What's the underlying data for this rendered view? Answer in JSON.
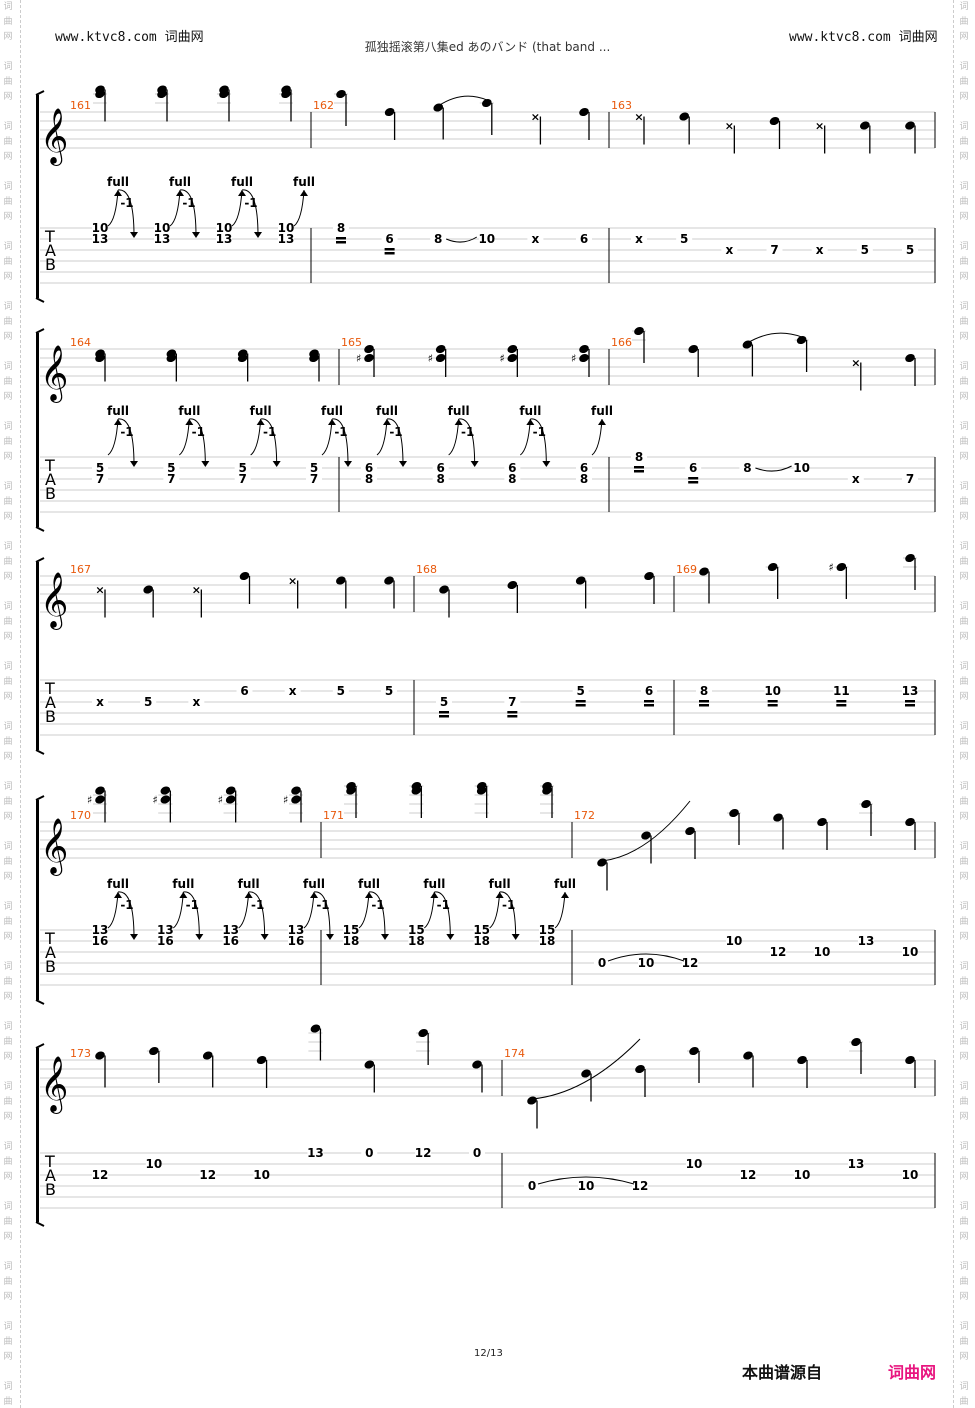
{
  "header": {
    "site_left": "www.ktvc8.com 词曲网",
    "site_right": "www.ktvc8.com 词曲网",
    "title": "孤独摇滚第八集ed あのバンド (that band  ..."
  },
  "watermark": "词曲网",
  "footer": {
    "page": "12/13",
    "source_label": "本曲谱源自",
    "brand": "词曲网"
  },
  "colors": {
    "measure_number": "#e8590c",
    "brand": "#e8157f",
    "staff_line": "#cccccc"
  },
  "tab_clef": [
    "T",
    "A",
    "B"
  ],
  "systems": [
    {
      "measures": [
        {
          "number": "161",
          "events": [
            {
              "notes": [
                [
                  1,
                  "10"
                ],
                [
                  2,
                  "13"
                ]
              ],
              "bend": "full",
              "release": "-1"
            },
            {
              "notes": [
                [
                  1,
                  "10"
                ],
                [
                  2,
                  "13"
                ]
              ],
              "bend": "full",
              "release": "-1"
            },
            {
              "notes": [
                [
                  1,
                  "10"
                ],
                [
                  2,
                  "13"
                ]
              ],
              "bend": "full",
              "release": "-1"
            },
            {
              "notes": [
                [
                  1,
                  "10"
                ],
                [
                  2,
                  "13"
                ]
              ],
              "bend": "full"
            }
          ]
        },
        {
          "number": "162",
          "events": [
            {
              "notes": [
                [
                  1,
                  "8"
                ]
              ],
              "mark": true
            },
            {
              "notes": [
                [
                  2,
                  "6"
                ]
              ],
              "mark": true
            },
            {
              "notes": [
                [
                  2,
                  "8"
                ]
              ],
              "slide": true
            },
            {
              "notes": [
                [
                  2,
                  "10"
                ]
              ]
            },
            {
              "notes": [
                [
                  2,
                  "x"
                ]
              ]
            },
            {
              "notes": [
                [
                  2,
                  "6"
                ]
              ]
            }
          ]
        },
        {
          "number": "163",
          "events": [
            {
              "notes": [
                [
                  2,
                  "x"
                ]
              ]
            },
            {
              "notes": [
                [
                  2,
                  "5"
                ]
              ]
            },
            {
              "notes": [
                [
                  3,
                  "x"
                ]
              ]
            },
            {
              "notes": [
                [
                  3,
                  "7"
                ]
              ]
            },
            {
              "notes": [
                [
                  3,
                  "x"
                ]
              ]
            },
            {
              "notes": [
                [
                  3,
                  "5"
                ]
              ]
            },
            {
              "notes": [
                [
                  3,
                  "5"
                ]
              ]
            }
          ]
        }
      ]
    },
    {
      "measures": [
        {
          "number": "164",
          "events": [
            {
              "notes": [
                [
                  2,
                  "5"
                ],
                [
                  3,
                  "7"
                ]
              ],
              "bend": "full",
              "release": "-1"
            },
            {
              "notes": [
                [
                  2,
                  "5"
                ],
                [
                  3,
                  "7"
                ]
              ],
              "bend": "full",
              "release": "-1"
            },
            {
              "notes": [
                [
                  2,
                  "5"
                ],
                [
                  3,
                  "7"
                ]
              ],
              "bend": "full",
              "release": "-1"
            },
            {
              "notes": [
                [
                  2,
                  "5"
                ],
                [
                  3,
                  "7"
                ]
              ],
              "bend": "full",
              "release": "-1"
            }
          ]
        },
        {
          "number": "165",
          "events": [
            {
              "notes": [
                [
                  2,
                  "6"
                ],
                [
                  3,
                  "8"
                ]
              ],
              "bend": "full",
              "release": "-1"
            },
            {
              "notes": [
                [
                  2,
                  "6"
                ],
                [
                  3,
                  "8"
                ]
              ],
              "bend": "full",
              "release": "-1"
            },
            {
              "notes": [
                [
                  2,
                  "6"
                ],
                [
                  3,
                  "8"
                ]
              ],
              "bend": "full",
              "release": "-1"
            },
            {
              "notes": [
                [
                  2,
                  "6"
                ],
                [
                  3,
                  "8"
                ]
              ],
              "bend": "full"
            }
          ]
        },
        {
          "number": "166",
          "events": [
            {
              "notes": [
                [
                  1,
                  "8"
                ]
              ],
              "mark": true
            },
            {
              "notes": [
                [
                  2,
                  "6"
                ]
              ],
              "mark": true
            },
            {
              "notes": [
                [
                  2,
                  "8"
                ]
              ],
              "slide": true
            },
            {
              "notes": [
                [
                  2,
                  "10"
                ]
              ]
            },
            {
              "notes": [
                [
                  3,
                  "x"
                ]
              ]
            },
            {
              "notes": [
                [
                  3,
                  "7"
                ]
              ]
            }
          ]
        }
      ]
    },
    {
      "measures": [
        {
          "number": "167",
          "events": [
            {
              "notes": [
                [
                  3,
                  "x"
                ]
              ]
            },
            {
              "notes": [
                [
                  3,
                  "5"
                ]
              ]
            },
            {
              "notes": [
                [
                  3,
                  "x"
                ]
              ]
            },
            {
              "notes": [
                [
                  2,
                  "6"
                ]
              ]
            },
            {
              "notes": [
                [
                  2,
                  "x"
                ]
              ]
            },
            {
              "notes": [
                [
                  2,
                  "5"
                ]
              ]
            },
            {
              "notes": [
                [
                  2,
                  "5"
                ]
              ]
            }
          ]
        },
        {
          "number": "168",
          "events": [
            {
              "notes": [
                [
                  3,
                  "5"
                ]
              ],
              "mark": true
            },
            {
              "notes": [
                [
                  3,
                  "7"
                ]
              ],
              "mark": true
            },
            {
              "notes": [
                [
                  2,
                  "5"
                ]
              ],
              "mark": true
            },
            {
              "notes": [
                [
                  2,
                  "6"
                ]
              ],
              "mark": true
            }
          ]
        },
        {
          "number": "169",
          "events": [
            {
              "notes": [
                [
                  2,
                  "8"
                ]
              ],
              "mark": true
            },
            {
              "notes": [
                [
                  2,
                  "10"
                ]
              ],
              "mark": true
            },
            {
              "notes": [
                [
                  2,
                  "11"
                ]
              ],
              "mark": true
            },
            {
              "notes": [
                [
                  2,
                  "13"
                ]
              ],
              "mark": true
            }
          ]
        }
      ]
    },
    {
      "measures": [
        {
          "number": "170",
          "events": [
            {
              "notes": [
                [
                  1,
                  "13"
                ],
                [
                  2,
                  "16"
                ]
              ],
              "bend": "full",
              "release": "-1"
            },
            {
              "notes": [
                [
                  1,
                  "13"
                ],
                [
                  2,
                  "16"
                ]
              ],
              "bend": "full",
              "release": "-1"
            },
            {
              "notes": [
                [
                  1,
                  "13"
                ],
                [
                  2,
                  "16"
                ]
              ],
              "bend": "full",
              "release": "-1"
            },
            {
              "notes": [
                [
                  1,
                  "13"
                ],
                [
                  2,
                  "16"
                ]
              ],
              "bend": "full",
              "release": "-1"
            }
          ]
        },
        {
          "number": "171",
          "events": [
            {
              "notes": [
                [
                  1,
                  "15"
                ],
                [
                  2,
                  "18"
                ]
              ],
              "bend": "full",
              "release": "-1"
            },
            {
              "notes": [
                [
                  1,
                  "15"
                ],
                [
                  2,
                  "18"
                ]
              ],
              "bend": "full",
              "release": "-1"
            },
            {
              "notes": [
                [
                  1,
                  "15"
                ],
                [
                  2,
                  "18"
                ]
              ],
              "bend": "full",
              "release": "-1"
            },
            {
              "notes": [
                [
                  1,
                  "15"
                ],
                [
                  2,
                  "18"
                ]
              ],
              "bend": "full"
            }
          ]
        },
        {
          "number": "172",
          "events": [
            {
              "notes": [
                [
                  4,
                  "0"
                ]
              ],
              "slur_start": true
            },
            {
              "notes": [
                [
                  4,
                  "10"
                ]
              ]
            },
            {
              "notes": [
                [
                  4,
                  "12"
                ]
              ],
              "slur_end": true
            },
            {
              "notes": [
                [
                  2,
                  "10"
                ]
              ]
            },
            {
              "notes": [
                [
                  3,
                  "12"
                ]
              ]
            },
            {
              "notes": [
                [
                  3,
                  "10"
                ]
              ]
            },
            {
              "notes": [
                [
                  2,
                  "13"
                ]
              ]
            },
            {
              "notes": [
                [
                  3,
                  "10"
                ]
              ]
            }
          ]
        }
      ]
    },
    {
      "measures": [
        {
          "number": "173",
          "events": [
            {
              "notes": [
                [
                  3,
                  "12"
                ]
              ]
            },
            {
              "notes": [
                [
                  2,
                  "10"
                ]
              ]
            },
            {
              "notes": [
                [
                  3,
                  "12"
                ]
              ]
            },
            {
              "notes": [
                [
                  3,
                  "10"
                ]
              ]
            },
            {
              "notes": [
                [
                  1,
                  "13"
                ]
              ]
            },
            {
              "notes": [
                [
                  1,
                  "0"
                ]
              ]
            },
            {
              "notes": [
                [
                  1,
                  "12"
                ]
              ]
            },
            {
              "notes": [
                [
                  1,
                  "0"
                ]
              ]
            }
          ]
        },
        {
          "number": "174",
          "events": [
            {
              "notes": [
                [
                  4,
                  "0"
                ]
              ],
              "slur_start": true
            },
            {
              "notes": [
                [
                  4,
                  "10"
                ]
              ]
            },
            {
              "notes": [
                [
                  4,
                  "12"
                ]
              ],
              "slur_end": true
            },
            {
              "notes": [
                [
                  2,
                  "10"
                ]
              ]
            },
            {
              "notes": [
                [
                  3,
                  "12"
                ]
              ]
            },
            {
              "notes": [
                [
                  3,
                  "10"
                ]
              ]
            },
            {
              "notes": [
                [
                  2,
                  "13"
                ]
              ]
            },
            {
              "notes": [
                [
                  3,
                  "10"
                ]
              ]
            }
          ]
        }
      ]
    }
  ]
}
